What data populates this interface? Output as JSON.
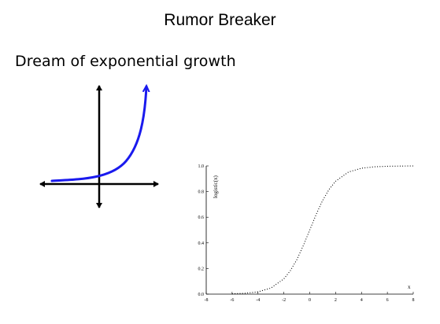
{
  "slide": {
    "title": "Rumor Breaker",
    "subtitle": "Dream of exponential growth"
  },
  "sketch": {
    "curve_color": "#1a1aee",
    "axis_color": "#000000"
  },
  "chart_data": {
    "type": "line",
    "title": "",
    "xlabel": "x",
    "ylabel": "logistic(x)",
    "xlim": [
      -8,
      8
    ],
    "ylim": [
      0.0,
      1.0
    ],
    "x_ticks": [
      "-8",
      "-6",
      "-4",
      "-2",
      "0",
      "2",
      "4",
      "6",
      "8"
    ],
    "y_ticks": [
      "0.0",
      "0.2",
      "0.4",
      "0.6",
      "0.8",
      "1.0"
    ],
    "line_style": "dotted",
    "series": [
      {
        "x": [
          -6,
          -5,
          -4,
          -3,
          -2,
          -1.5,
          -1,
          -0.5,
          0,
          0.5,
          1,
          1.5,
          2,
          3,
          4,
          5,
          6,
          7,
          8
        ],
        "y": [
          0.0025,
          0.0067,
          0.018,
          0.047,
          0.119,
          0.182,
          0.269,
          0.378,
          0.5,
          0.622,
          0.731,
          0.818,
          0.881,
          0.953,
          0.982,
          0.993,
          0.9975,
          0.999,
          0.9997
        ]
      }
    ]
  }
}
